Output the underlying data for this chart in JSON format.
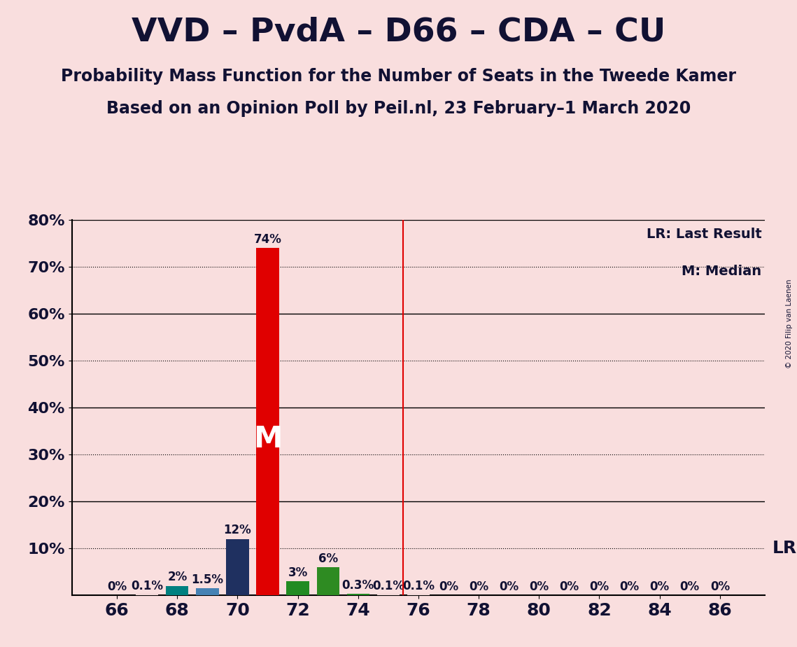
{
  "title": "VVD – PvdA – D66 – CDA – CU",
  "subtitle1": "Probability Mass Function for the Number of Seats in the Tweede Kamer",
  "subtitle2": "Based on an Opinion Poll by Peil.nl, 23 February–1 March 2020",
  "copyright": "© 2020 Filip van Laenen",
  "background_color": "#f9dede",
  "seats": [
    66,
    67,
    68,
    69,
    70,
    71,
    72,
    73,
    74,
    75,
    76,
    77,
    78,
    79,
    80,
    81,
    82,
    83,
    84,
    85,
    86
  ],
  "probabilities": [
    0.0,
    0.001,
    0.02,
    0.015,
    0.12,
    0.74,
    0.03,
    0.06,
    0.003,
    0.001,
    0.001,
    0.0,
    0.0,
    0.0,
    0.0,
    0.0,
    0.0,
    0.0,
    0.0,
    0.0,
    0.0
  ],
  "bar_colors": [
    "#f9dede",
    "#f9dede",
    "#008080",
    "#4682b4",
    "#1f3060",
    "#e00000",
    "#228b22",
    "#2e8b22",
    "#228b22",
    "#f9dede",
    "#f9dede",
    "#f9dede",
    "#f9dede",
    "#f9dede",
    "#f9dede",
    "#f9dede",
    "#f9dede",
    "#f9dede",
    "#f9dede",
    "#f9dede",
    "#f9dede"
  ],
  "bar_labels": [
    "0%",
    "0.1%",
    "2%",
    "1.5%",
    "12%",
    "74%",
    "3%",
    "6%",
    "0.3%",
    "0.1%",
    "0.1%",
    "0%",
    "0%",
    "0%",
    "0%",
    "0%",
    "0%",
    "0%",
    "0%",
    "0%",
    "0%"
  ],
  "median_seat": 71,
  "lr_seat": 75.5,
  "ylim": [
    0,
    0.8
  ],
  "major_yticks": [
    0.2,
    0.4,
    0.6,
    0.8
  ],
  "minor_yticks": [
    0.1,
    0.3,
    0.5,
    0.7
  ],
  "xtick_labels": [
    "66",
    "68",
    "70",
    "72",
    "74",
    "76",
    "78",
    "80",
    "82",
    "84",
    "86"
  ],
  "xticks": [
    66,
    68,
    70,
    72,
    74,
    76,
    78,
    80,
    82,
    84,
    86
  ],
  "legend_lr": "LR: Last Result",
  "legend_m": "M: Median",
  "lr_label": "LR",
  "median_label": "M",
  "text_color": "#111133",
  "title_fontsize": 34,
  "subtitle_fontsize": 17,
  "label_fontsize": 12,
  "tick_fontsize": 16,
  "xlim": [
    64.5,
    87.5
  ]
}
